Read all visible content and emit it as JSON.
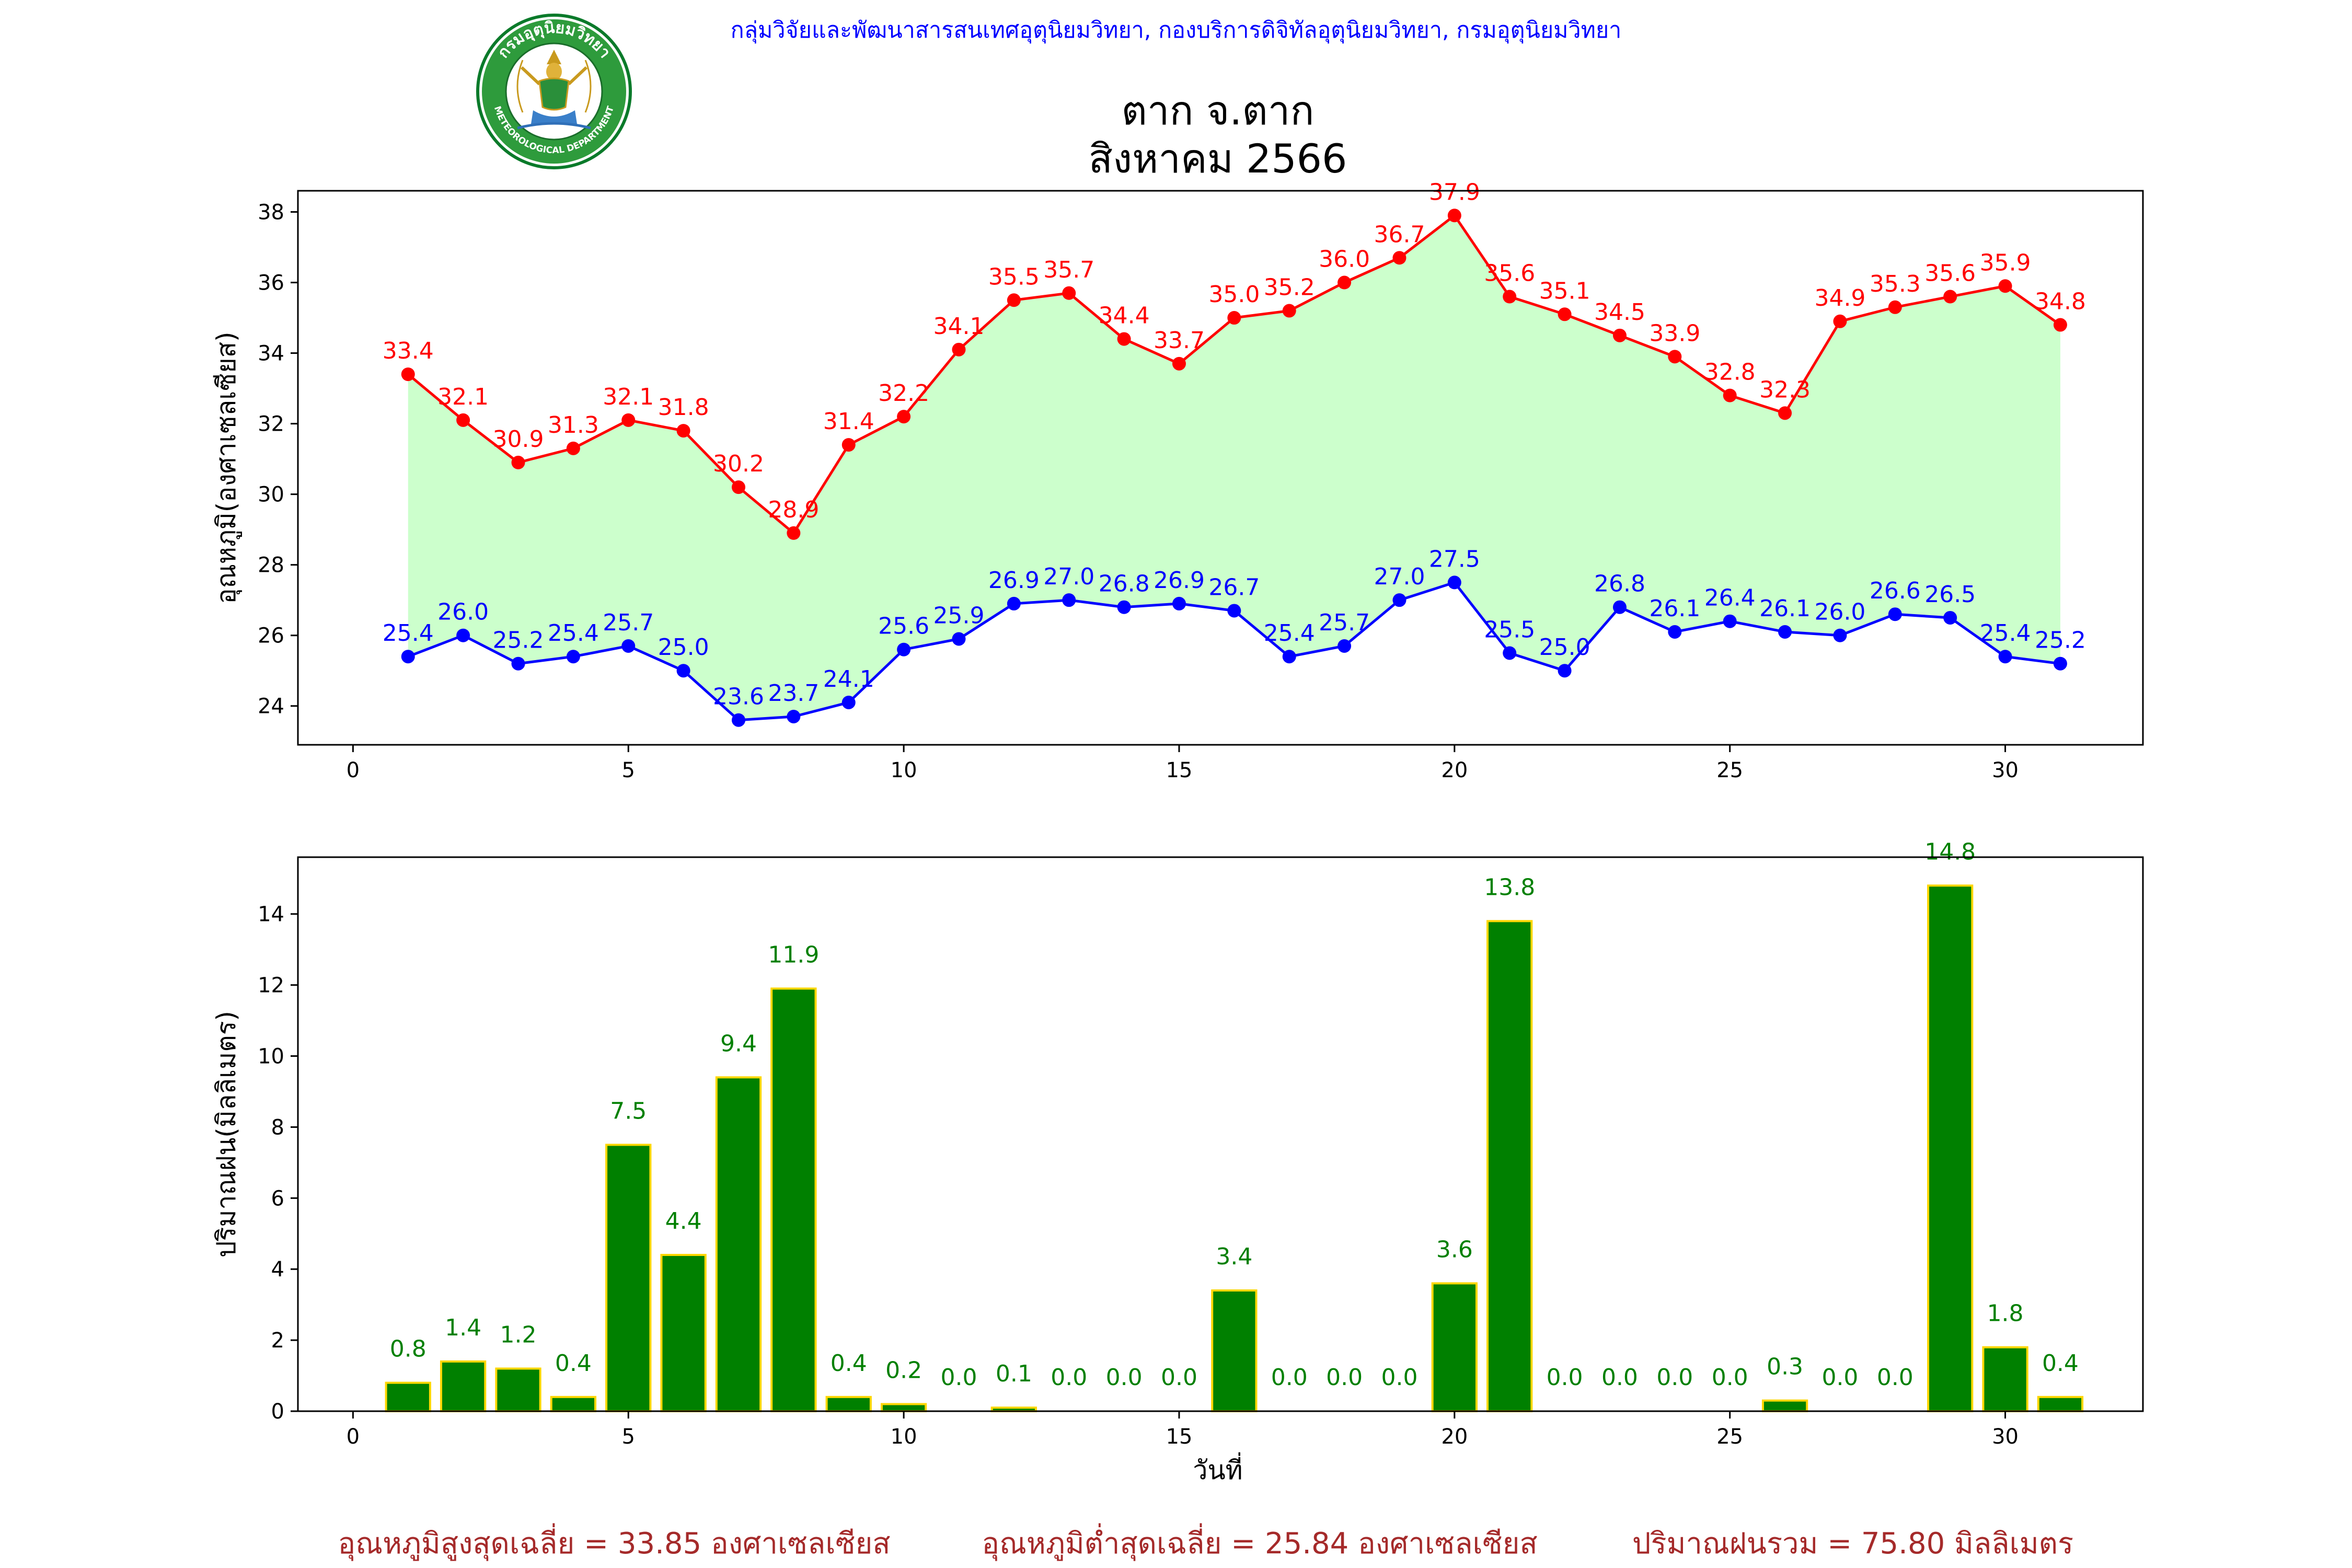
{
  "header": {
    "org_line": "กลุ่มวิจัยและพัฒนาสารสนเทศอุตุนิยมวิทยา, กองบริการดิจิทัลอุตุนิยมวิทยา, กรมอุตุนิยมวิทยา",
    "title_line1": "ตาก จ.ตาก",
    "title_line2": "สิงหาคม 2566",
    "logo_ring_text": "กรมอุตุนิยมวิทยา",
    "logo_ring_text_en": "METEOROLOGICAL DEPARTMENT"
  },
  "colors": {
    "max_series": "#ff0000",
    "min_series": "#0000ff",
    "fill_between": "#ccffcc",
    "rain_bar": "#008000",
    "rain_bar_edge": "#ffd700",
    "rain_label": "#008000",
    "header_text": "#0000ff",
    "summary_text": "#a52a2a"
  },
  "chart_data": [
    {
      "type": "line",
      "ylabel": "อุณหภูมิ(องศาเซลเซียส)",
      "xlim": [
        -1,
        32.5
      ],
      "ylim": [
        22.9,
        38.6
      ],
      "xticks": [
        0,
        5,
        10,
        15,
        20,
        25,
        30
      ],
      "yticks": [
        24,
        26,
        28,
        30,
        32,
        34,
        36,
        38
      ],
      "grid": false,
      "x": [
        1,
        2,
        3,
        4,
        5,
        6,
        7,
        8,
        9,
        10,
        11,
        12,
        13,
        14,
        15,
        16,
        17,
        18,
        19,
        20,
        21,
        22,
        23,
        24,
        25,
        26,
        27,
        28,
        29,
        30,
        31
      ],
      "series": [
        {
          "values": [
            33.4,
            32.1,
            30.9,
            31.3,
            32.1,
            31.8,
            30.2,
            28.9,
            31.4,
            32.2,
            34.1,
            35.5,
            35.7,
            34.4,
            33.7,
            35.0,
            35.2,
            36.0,
            36.7,
            37.9,
            35.6,
            35.1,
            34.5,
            33.9,
            32.8,
            32.3,
            34.9,
            35.3,
            35.6,
            35.9,
            34.8
          ],
          "labels": [
            "33.4",
            "32.1",
            "30.9",
            "31.3",
            "32.1",
            "31.8",
            "30.2",
            "28.9",
            "31.4",
            "32.2",
            "34.1",
            "35.5",
            "35.7",
            "34.4",
            "33.7",
            "35.0",
            "35.2",
            "36.0",
            "36.7",
            "37.9",
            "35.6",
            "35.1",
            "34.5",
            "33.9",
            "32.8",
            "32.3",
            "34.9",
            "35.3",
            "35.6",
            "35.9",
            "34.8"
          ]
        },
        {
          "values": [
            25.4,
            26.0,
            25.2,
            25.4,
            25.7,
            25.0,
            23.6,
            23.7,
            24.1,
            25.6,
            25.9,
            26.9,
            27.0,
            26.8,
            26.9,
            26.7,
            25.4,
            25.7,
            27.0,
            27.5,
            25.5,
            25.0,
            26.8,
            26.1,
            26.4,
            26.1,
            26.0,
            26.6,
            26.5,
            25.4,
            25.2
          ],
          "labels": [
            "25.4",
            "26.0",
            "25.2",
            "25.4",
            "25.7",
            "25.0",
            "23.6",
            "23.7",
            "24.1",
            "25.6",
            "25.9",
            "26.9",
            "27.0",
            "26.8",
            "26.9",
            "26.7",
            "25.4",
            "25.7",
            "27.0",
            "27.5",
            "25.5",
            "25.0",
            "26.8",
            "26.1",
            "26.4",
            "26.1",
            "26.0",
            "26.6",
            "26.5",
            "25.4",
            "25.2"
          ]
        }
      ]
    },
    {
      "type": "bar",
      "xlabel": "วันที่",
      "ylabel": "ปริมาณฝน(มิลลิเมตร)",
      "xlim": [
        -1,
        32.5
      ],
      "ylim": [
        0,
        15.6
      ],
      "xticks": [
        0,
        5,
        10,
        15,
        20,
        25,
        30
      ],
      "yticks": [
        0,
        2,
        4,
        6,
        8,
        10,
        12,
        14
      ],
      "grid": false,
      "x": [
        1,
        2,
        3,
        4,
        5,
        6,
        7,
        8,
        9,
        10,
        11,
        12,
        13,
        14,
        15,
        16,
        17,
        18,
        19,
        20,
        21,
        22,
        23,
        24,
        25,
        26,
        27,
        28,
        29,
        30,
        31
      ],
      "values": [
        0.8,
        1.4,
        1.2,
        0.4,
        7.5,
        4.4,
        9.4,
        11.9,
        0.4,
        0.2,
        0.0,
        0.1,
        0.0,
        0.0,
        0.0,
        3.4,
        0.0,
        0.0,
        0.0,
        3.6,
        13.8,
        0.0,
        0.0,
        0.0,
        0.0,
        0.3,
        0.0,
        0.0,
        14.8,
        1.8,
        0.4
      ],
      "labels": [
        "0.8",
        "1.4",
        "1.2",
        "0.4",
        "7.5",
        "4.4",
        "9.4",
        "11.9",
        "0.4",
        "0.2",
        "0.0",
        "0.1",
        "0.0",
        "0.0",
        "0.0",
        "3.4",
        "0.0",
        "0.0",
        "0.0",
        "3.6",
        "13.8",
        "0.0",
        "0.0",
        "0.0",
        "0.0",
        "0.3",
        "0.0",
        "0.0",
        "14.8",
        "1.8",
        "0.4"
      ]
    }
  ],
  "summary": {
    "avg_max": "อุณหภูมิสูงสุดเฉลี่ย = 33.85 องศาเซลเซียส",
    "avg_min": "อุณหภูมิต่ำสุดเฉลี่ย = 25.84 องศาเซลเซียส",
    "total_rain": "ปริมาณฝนรวม = 75.80 มิลลิเมตร"
  }
}
